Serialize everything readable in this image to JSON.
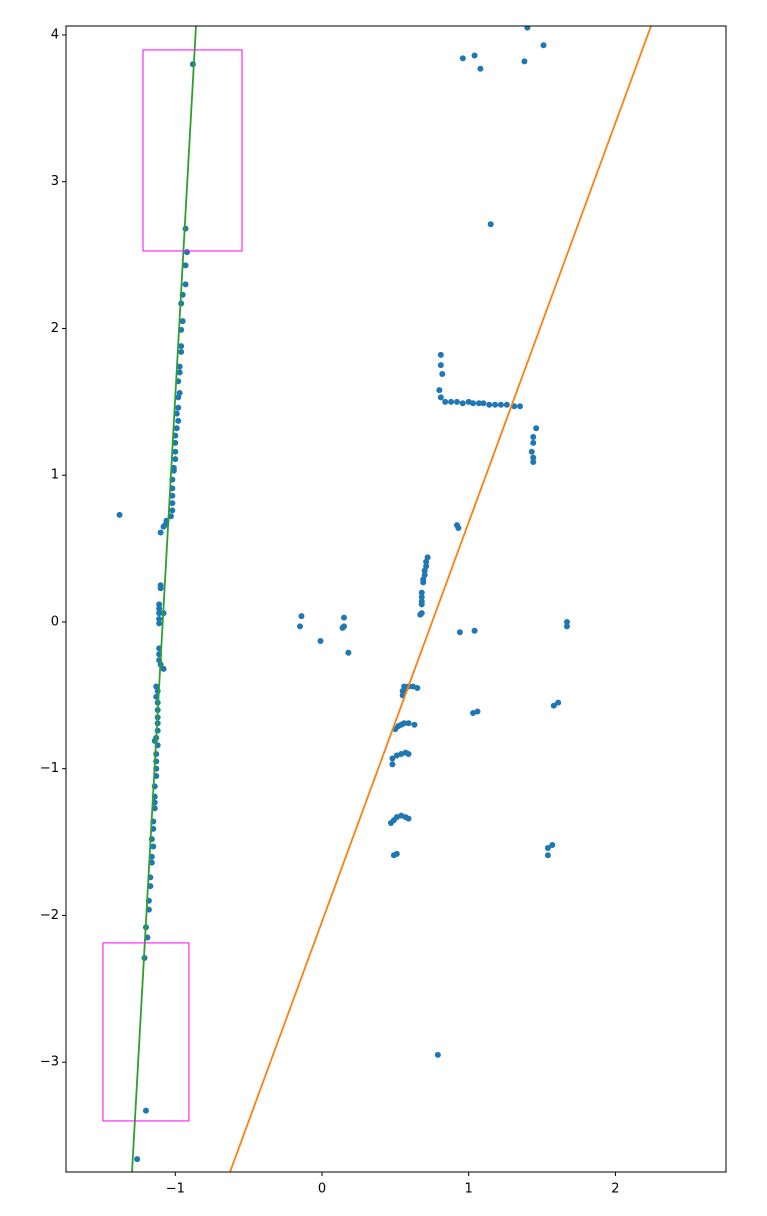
{
  "chart_data": {
    "type": "scatter",
    "xlim": [
      -1.745,
      2.754
    ],
    "ylim": [
      -3.748,
      4.061
    ],
    "xticks": [
      {
        "value": -1,
        "label": "−1"
      },
      0,
      1,
      2
    ],
    "yticks": [
      {
        "value": -3,
        "label": "−3"
      },
      {
        "value": -2,
        "label": "−2"
      },
      {
        "value": -1,
        "label": "−1"
      },
      0,
      1,
      2,
      3,
      4
    ],
    "grid": false,
    "series": [
      {
        "type": "scatter",
        "color": "#1f77b4",
        "x": [
          -0.88,
          -0.93,
          -0.92,
          -0.93,
          -0.93,
          -0.95,
          -0.96,
          -0.95,
          -0.96,
          -0.96,
          -0.96,
          -0.97,
          -0.97,
          -0.98,
          -0.97,
          -0.98,
          -0.98,
          -0.99,
          -0.98,
          -0.99,
          -1.0,
          -1.0,
          -1.0,
          -1.0,
          -1.01,
          -1.01,
          -1.02,
          -1.02,
          -1.02,
          -1.02,
          -1.02,
          -1.03,
          -1.06,
          -1.07,
          -1.08,
          -1.1,
          -1.38,
          -1.1,
          -1.1,
          -1.11,
          -1.11,
          -1.11,
          -1.11,
          -1.11,
          -1.08,
          -1.11,
          -1.11,
          -1.11,
          -1.1,
          -1.08,
          -1.13,
          -1.12,
          -1.13,
          -1.12,
          -1.12,
          -1.12,
          -1.12,
          -1.12,
          -1.13,
          -1.12,
          -1.14,
          -1.13,
          -1.13,
          -1.13,
          -1.13,
          -1.14,
          -1.14,
          -1.14,
          -1.14,
          -1.15,
          -1.15,
          -1.16,
          -1.15,
          -1.16,
          -1.16,
          -1.17,
          -1.17,
          -1.18,
          -1.18,
          -1.2,
          -1.19,
          -1.21,
          -1.2,
          -1.26,
          1.4,
          1.04,
          0.96,
          1.08,
          1.51,
          1.38,
          1.15,
          0.81,
          0.81,
          0.82,
          0.8,
          0.81,
          0.84,
          0.88,
          0.92,
          0.96,
          1.0,
          1.03,
          1.07,
          1.1,
          1.14,
          1.18,
          1.22,
          1.26,
          1.31,
          1.35,
          1.46,
          1.44,
          1.44,
          1.43,
          1.44,
          1.44,
          0.92,
          0.93,
          0.94,
          1.04,
          1.67,
          1.67,
          0.72,
          0.71,
          0.71,
          0.7,
          0.7,
          0.69,
          0.69,
          0.68,
          0.68,
          0.68,
          0.68,
          0.68,
          0.67,
          -0.14,
          -0.15,
          -0.01,
          0.15,
          0.14,
          0.15,
          0.18,
          0.56,
          0.57,
          0.55,
          0.55,
          0.59,
          0.62,
          0.65,
          0.5,
          0.52,
          0.54,
          0.56,
          0.59,
          0.63,
          0.48,
          0.48,
          0.51,
          0.54,
          0.57,
          0.59,
          0.47,
          0.49,
          0.51,
          0.54,
          0.57,
          0.59,
          0.49,
          0.51,
          1.03,
          1.06,
          1.58,
          1.61,
          1.54,
          1.57,
          1.54,
          0.79
        ],
        "values": [
          3.8,
          2.68,
          2.52,
          2.43,
          2.3,
          2.23,
          2.17,
          2.05,
          1.99,
          1.88,
          1.84,
          1.74,
          1.7,
          1.64,
          1.56,
          1.53,
          1.46,
          1.42,
          1.37,
          1.32,
          1.27,
          1.22,
          1.16,
          1.11,
          1.05,
          1.03,
          0.97,
          0.91,
          0.86,
          0.81,
          0.76,
          0.72,
          0.69,
          0.66,
          0.65,
          0.61,
          0.73,
          0.25,
          0.23,
          0.12,
          0.09,
          0.06,
          0.02,
          -0.01,
          0.06,
          -0.18,
          -0.22,
          -0.26,
          -0.29,
          -0.32,
          -0.44,
          -0.47,
          -0.51,
          -0.55,
          -0.6,
          -0.65,
          -0.69,
          -0.74,
          -0.79,
          -0.84,
          -0.81,
          -0.9,
          -0.95,
          -1.0,
          -1.05,
          -1.12,
          -1.19,
          -1.23,
          -1.27,
          -1.36,
          -1.41,
          -1.48,
          -1.53,
          -1.6,
          -1.64,
          -1.74,
          -1.8,
          -1.9,
          -1.96,
          -2.08,
          -2.15,
          -2.29,
          -3.33,
          -3.66,
          4.05,
          3.86,
          3.84,
          3.77,
          3.93,
          3.82,
          2.71,
          1.82,
          1.75,
          1.69,
          1.58,
          1.53,
          1.5,
          1.5,
          1.5,
          1.49,
          1.5,
          1.49,
          1.49,
          1.49,
          1.48,
          1.48,
          1.48,
          1.48,
          1.47,
          1.47,
          1.32,
          1.26,
          1.22,
          1.16,
          1.12,
          1.09,
          0.66,
          0.64,
          -0.07,
          -0.06,
          0.0,
          -0.03,
          0.44,
          0.41,
          0.38,
          0.35,
          0.32,
          0.29,
          0.27,
          0.2,
          0.17,
          0.14,
          0.12,
          0.06,
          0.05,
          0.04,
          -0.03,
          -0.13,
          0.03,
          -0.04,
          -0.03,
          -0.21,
          -0.44,
          -0.45,
          -0.47,
          -0.5,
          -0.44,
          -0.44,
          -0.45,
          -0.73,
          -0.71,
          -0.7,
          -0.69,
          -0.69,
          -0.7,
          -0.97,
          -0.93,
          -0.91,
          -0.9,
          -0.89,
          -0.9,
          -1.37,
          -1.35,
          -1.33,
          -1.32,
          -1.33,
          -1.34,
          -1.59,
          -1.58,
          -0.62,
          -0.61,
          -0.57,
          -0.55,
          -1.54,
          -1.52,
          -1.59,
          -2.95
        ]
      },
      {
        "type": "line",
        "color": "#2ca02c",
        "x": [
          -1.295,
          -0.859
        ],
        "values": [
          -3.748,
          4.061
        ]
      },
      {
        "type": "line",
        "color": "#ff7f0e",
        "x": [
          -0.627,
          2.243
        ],
        "values": [
          -3.748,
          4.061
        ]
      },
      {
        "type": "rect",
        "color": "#ff00ff",
        "x": [
          -1.22,
          -0.545
        ],
        "values": [
          3.898,
          2.528
        ]
      },
      {
        "type": "rect",
        "color": "#ff00ff",
        "x": [
          -1.493,
          -0.907
        ],
        "values": [
          -2.187,
          -3.4
        ]
      }
    ]
  }
}
